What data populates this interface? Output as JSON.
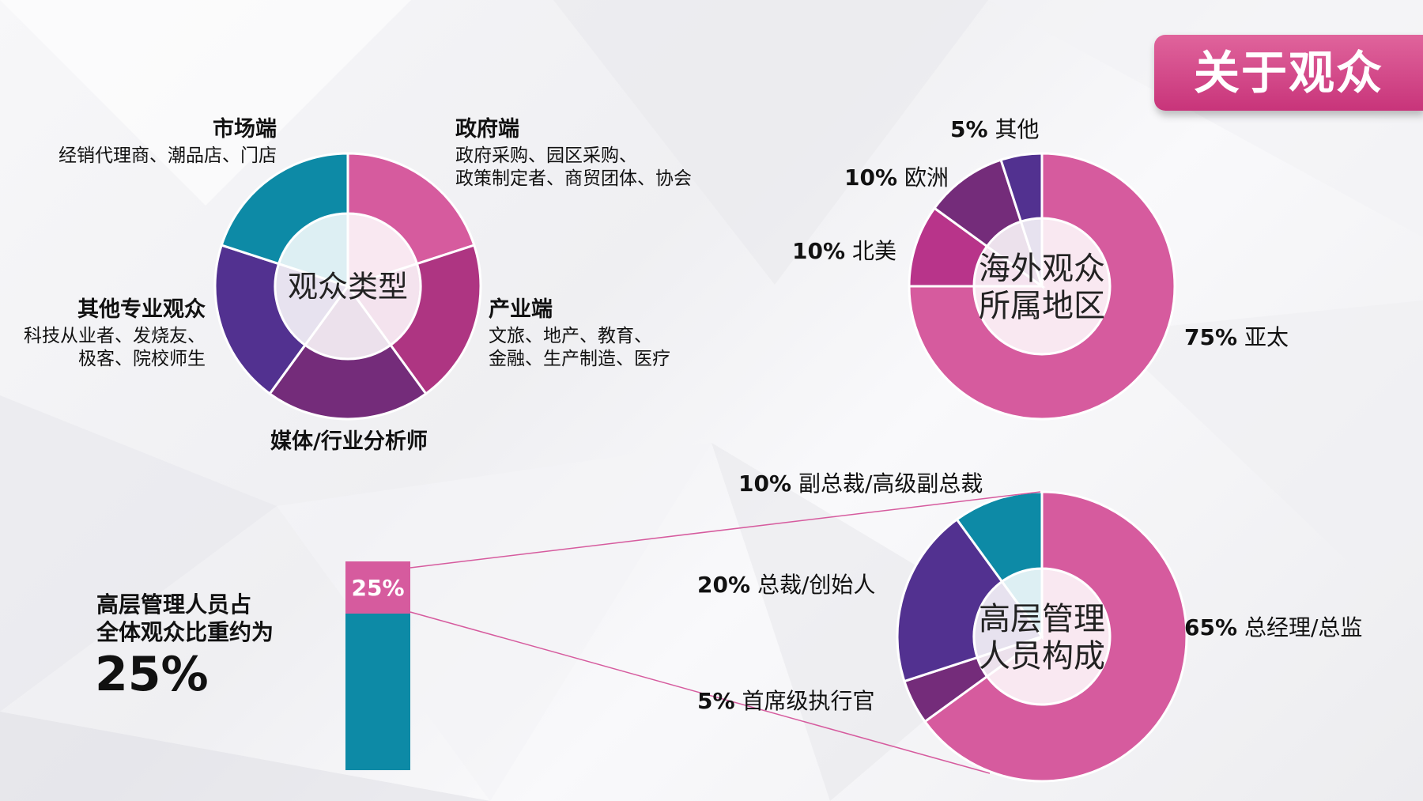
{
  "header": {
    "title": "关于观众"
  },
  "chart_data": [
    {
      "type": "pie",
      "center_label": "观众类型",
      "colors": [
        "#d65b9e",
        "#ae3582",
        "#742c7a",
        "#523190",
        "#0d8aa6"
      ],
      "slices": [
        {
          "name": "政府端",
          "detail_lines": [
            "政府采购、园区采购、",
            "政策制定者、商贸团体、协会"
          ],
          "value": 20
        },
        {
          "name": "产业端",
          "detail_lines": [
            "文旅、地产、教育、",
            "金融、生产制造、医疗"
          ],
          "value": 20
        },
        {
          "name": "媒体/行业分析师",
          "detail_lines": [],
          "value": 20
        },
        {
          "name": "其他专业观众",
          "detail_lines": [
            "科技从业者、发烧友、",
            "极客、院校师生"
          ],
          "value": 20
        },
        {
          "name": "市场端",
          "detail_lines": [
            "经销代理商、潮品店、门店"
          ],
          "value": 20
        }
      ]
    },
    {
      "type": "pie",
      "center_label_lines": [
        "海外观众",
        "所属地区"
      ],
      "slices": [
        {
          "pct_label": "75%",
          "name": "亚太",
          "value": 75,
          "color": "#d65b9e"
        },
        {
          "pct_label": "10%",
          "name": "北美",
          "value": 10,
          "color": "#b8348a"
        },
        {
          "pct_label": "10%",
          "name": "欧洲",
          "value": 10,
          "color": "#742c7a"
        },
        {
          "pct_label": "5%",
          "name": "其他",
          "value": 5,
          "color": "#523190"
        }
      ]
    },
    {
      "type": "bar",
      "stacked": true,
      "caption_lines": [
        "高层管理人员占",
        "全体观众比重约为"
      ],
      "value_label": "25%",
      "segments": [
        {
          "value": 25,
          "label": "25%",
          "color": "#d65b9e"
        },
        {
          "value": 75,
          "color": "#0d8aa6"
        }
      ]
    },
    {
      "type": "pie",
      "center_label_lines": [
        "高层管理",
        "人员构成"
      ],
      "slices": [
        {
          "pct_label": "65%",
          "name": "总经理/总监",
          "value": 65,
          "color": "#d65b9e"
        },
        {
          "pct_label": "5%",
          "name": "首席级执行官",
          "value": 5,
          "color": "#742c7a"
        },
        {
          "pct_label": "20%",
          "name": "总裁/创始人",
          "value": 20,
          "color": "#523190"
        },
        {
          "pct_label": "10%",
          "name": "副总裁/高级副总裁",
          "value": 10,
          "color": "#0d8aa6"
        }
      ]
    }
  ]
}
